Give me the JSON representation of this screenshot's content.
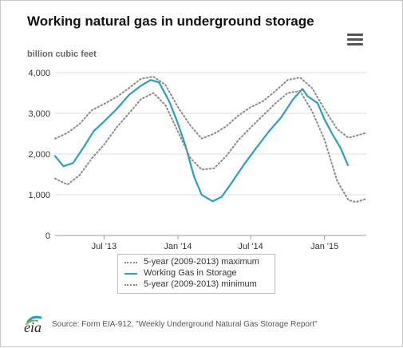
{
  "title": "Working natural gas in underground storage",
  "unit_label": "billion cubic feet",
  "menu_icon": "hamburger-menu-icon",
  "source": "Source: Form EIA-912, \"Weekly Underground Natural Gas Storage Report\"",
  "logo_text": "eia",
  "colors": {
    "working": "#2a9fc0",
    "range": "#8a8a8a"
  },
  "chart_data": {
    "type": "line",
    "xlabel": "",
    "ylabel": "billion cubic feet",
    "ylim": [
      0,
      4000
    ],
    "yticks": [
      0,
      1000,
      2000,
      3000,
      4000
    ],
    "ytick_labels": [
      "0",
      "1,000",
      "2,000",
      "3,000",
      "4,000"
    ],
    "x_range": [
      "2013-03-01",
      "2015-04-15"
    ],
    "xticks": [
      "2013-07-01",
      "2014-01-01",
      "2014-07-01",
      "2015-01-01"
    ],
    "xtick_labels": [
      "Jul '13",
      "Jan '14",
      "Jul '14",
      "Jan '15"
    ],
    "grid": true,
    "legend_position": "bottom",
    "series": [
      {
        "name": "5-year (2009-2013) maximum",
        "style": "dotted",
        "points": [
          [
            "2013-03-01",
            2380
          ],
          [
            "2013-04-01",
            2520
          ],
          [
            "2013-05-01",
            2740
          ],
          [
            "2013-06-01",
            3080
          ],
          [
            "2013-07-01",
            3230
          ],
          [
            "2013-08-01",
            3400
          ],
          [
            "2013-09-01",
            3620
          ],
          [
            "2013-10-01",
            3850
          ],
          [
            "2013-11-01",
            3900
          ],
          [
            "2013-12-01",
            3700
          ],
          [
            "2014-01-01",
            3150
          ],
          [
            "2014-02-01",
            2700
          ],
          [
            "2014-03-01",
            2380
          ],
          [
            "2014-04-01",
            2500
          ],
          [
            "2014-05-01",
            2680
          ],
          [
            "2014-06-01",
            2950
          ],
          [
            "2014-07-01",
            3150
          ],
          [
            "2014-08-01",
            3300
          ],
          [
            "2014-09-01",
            3550
          ],
          [
            "2014-10-01",
            3820
          ],
          [
            "2014-11-01",
            3880
          ],
          [
            "2014-12-01",
            3620
          ],
          [
            "2015-01-01",
            3100
          ],
          [
            "2015-02-01",
            2620
          ],
          [
            "2015-03-01",
            2400
          ],
          [
            "2015-04-15",
            2520
          ]
        ]
      },
      {
        "name": "Working Gas in Storage",
        "style": "solid",
        "points": [
          [
            "2013-03-01",
            1950
          ],
          [
            "2013-03-22",
            1700
          ],
          [
            "2013-04-15",
            1780
          ],
          [
            "2013-05-10",
            2150
          ],
          [
            "2013-06-05",
            2560
          ],
          [
            "2013-07-01",
            2800
          ],
          [
            "2013-08-01",
            3100
          ],
          [
            "2013-09-01",
            3450
          ],
          [
            "2013-10-01",
            3680
          ],
          [
            "2013-10-25",
            3820
          ],
          [
            "2013-11-15",
            3760
          ],
          [
            "2013-12-10",
            3300
          ],
          [
            "2014-01-01",
            2750
          ],
          [
            "2014-01-20",
            2200
          ],
          [
            "2014-02-10",
            1450
          ],
          [
            "2014-03-01",
            1000
          ],
          [
            "2014-03-28",
            840
          ],
          [
            "2014-04-20",
            950
          ],
          [
            "2014-05-15",
            1300
          ],
          [
            "2014-06-15",
            1750
          ],
          [
            "2014-07-15",
            2150
          ],
          [
            "2014-08-15",
            2550
          ],
          [
            "2014-09-15",
            2900
          ],
          [
            "2014-10-15",
            3350
          ],
          [
            "2014-11-07",
            3600
          ],
          [
            "2014-11-20",
            3420
          ],
          [
            "2014-12-15",
            3250
          ],
          [
            "2015-01-01",
            2850
          ],
          [
            "2015-01-20",
            2500
          ],
          [
            "2015-02-10",
            2150
          ],
          [
            "2015-02-28",
            1730
          ]
        ]
      },
      {
        "name": "5-year (2009-2013) minimum",
        "style": "dotted",
        "points": [
          [
            "2013-03-01",
            1400
          ],
          [
            "2013-04-01",
            1250
          ],
          [
            "2013-05-01",
            1480
          ],
          [
            "2013-06-01",
            1900
          ],
          [
            "2013-07-01",
            2230
          ],
          [
            "2013-08-01",
            2650
          ],
          [
            "2013-09-01",
            3000
          ],
          [
            "2013-10-01",
            3350
          ],
          [
            "2013-11-01",
            3500
          ],
          [
            "2013-12-01",
            3200
          ],
          [
            "2014-01-01",
            2550
          ],
          [
            "2014-02-01",
            1900
          ],
          [
            "2014-03-01",
            1620
          ],
          [
            "2014-04-01",
            1650
          ],
          [
            "2014-05-01",
            1950
          ],
          [
            "2014-06-01",
            2350
          ],
          [
            "2014-07-01",
            2650
          ],
          [
            "2014-08-01",
            2950
          ],
          [
            "2014-09-01",
            3250
          ],
          [
            "2014-10-01",
            3500
          ],
          [
            "2014-11-01",
            3550
          ],
          [
            "2014-12-01",
            3050
          ],
          [
            "2015-01-01",
            2350
          ],
          [
            "2015-02-01",
            1350
          ],
          [
            "2015-03-01",
            870
          ],
          [
            "2015-03-20",
            820
          ],
          [
            "2015-04-15",
            900
          ]
        ]
      }
    ]
  }
}
